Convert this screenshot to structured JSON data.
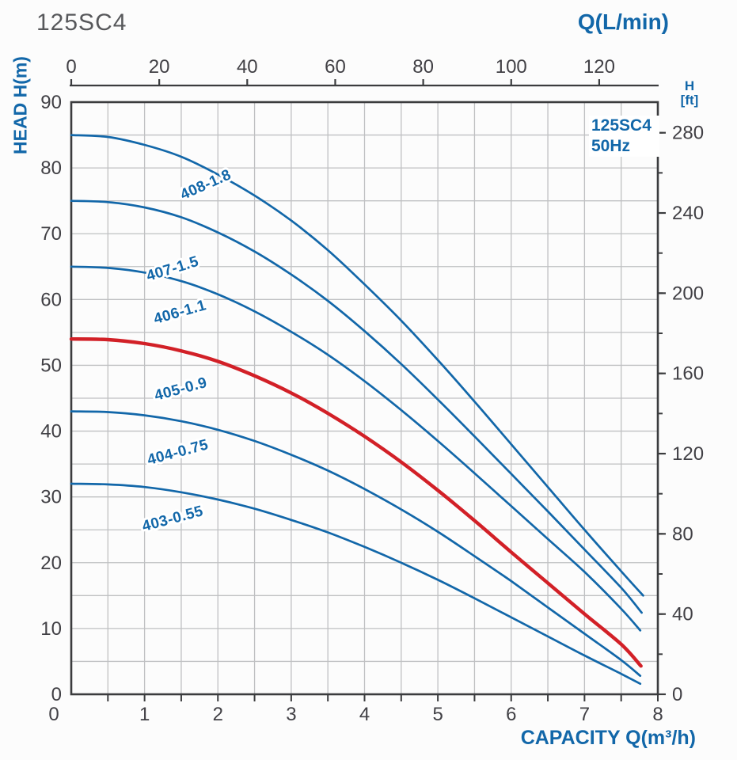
{
  "page": {
    "title": "125SC4"
  },
  "colors": {
    "curve_blue": "#1267a9",
    "curve_red": "#d22027",
    "grid": "#bfc0c2",
    "axis": "#3b3c3e",
    "tick_text": "#414045",
    "title_gray": "#57585b"
  },
  "chart_data": {
    "type": "line",
    "title": "125SC4",
    "legend": {
      "line1": "125SC4",
      "line2": "50Hz"
    },
    "top_axis": {
      "label": "Q(L/min)",
      "ticks": [
        0,
        20,
        40,
        60,
        80,
        100,
        120
      ],
      "range": [
        0,
        133.33
      ],
      "unit": "L/min"
    },
    "bottom_axis": {
      "label": "CAPACITY Q(m³/h)",
      "ticks": [
        0,
        1,
        2,
        3,
        4,
        5,
        6,
        7,
        8
      ],
      "minor_step": 0.5,
      "range": [
        0,
        8
      ],
      "unit": "m³/h"
    },
    "left_axis": {
      "label": "HEAD H(m)",
      "ticks": [
        0,
        10,
        20,
        30,
        40,
        50,
        60,
        70,
        80,
        90
      ],
      "grid_step": 5,
      "range": [
        0,
        90
      ],
      "unit": "m"
    },
    "right_axis": {
      "label_line1": "H",
      "label_line2": "[ft]",
      "major_ticks": [
        0,
        40,
        80,
        120,
        160,
        200,
        240,
        280
      ],
      "minor_step": 20,
      "unit": "ft",
      "ft_per_m": 3.28084
    },
    "grid": true,
    "series": [
      {
        "name": "408-1.8",
        "label": "408-1.8",
        "color_role": "curve_blue",
        "emphasis": false,
        "label_pos": [
          1.86,
          76.8
        ],
        "label_angle": -24,
        "points": [
          [
            0,
            85
          ],
          [
            0.5,
            84.7
          ],
          [
            1,
            83.5
          ],
          [
            1.5,
            81.7
          ],
          [
            2,
            79
          ],
          [
            2.5,
            75.8
          ],
          [
            3,
            72
          ],
          [
            3.5,
            67.5
          ],
          [
            4,
            62.3
          ],
          [
            4.5,
            56.8
          ],
          [
            5,
            50.8
          ],
          [
            5.5,
            44.5
          ],
          [
            6,
            38
          ],
          [
            6.5,
            31.5
          ],
          [
            7,
            25
          ],
          [
            7.5,
            18.7
          ],
          [
            7.8,
            15
          ]
        ]
      },
      {
        "name": "407-1.5",
        "label": "407-1.5",
        "color_role": "curve_blue",
        "emphasis": false,
        "label_pos": [
          1.4,
          64.0
        ],
        "label_angle": -17,
        "points": [
          [
            0,
            75
          ],
          [
            0.5,
            74.8
          ],
          [
            1,
            74
          ],
          [
            1.5,
            72.5
          ],
          [
            2,
            70.2
          ],
          [
            2.5,
            67.3
          ],
          [
            3,
            63.8
          ],
          [
            3.5,
            59.8
          ],
          [
            4,
            55.2
          ],
          [
            4.5,
            50.2
          ],
          [
            5,
            44.8
          ],
          [
            5.5,
            39.2
          ],
          [
            6,
            33.5
          ],
          [
            6.5,
            27.8
          ],
          [
            7,
            22
          ],
          [
            7.5,
            16.2
          ],
          [
            7.78,
            12.4
          ]
        ]
      },
      {
        "name": "406-1.1",
        "label": "406-1.1",
        "color_role": "curve_blue",
        "emphasis": false,
        "label_pos": [
          1.5,
          57.4
        ],
        "label_angle": -16,
        "points": [
          [
            0,
            65
          ],
          [
            0.5,
            64.8
          ],
          [
            1,
            64.1
          ],
          [
            1.5,
            62.8
          ],
          [
            2,
            60.8
          ],
          [
            2.5,
            58.2
          ],
          [
            3,
            55.1
          ],
          [
            3.5,
            51.6
          ],
          [
            4,
            47.6
          ],
          [
            4.5,
            43.2
          ],
          [
            5,
            38.5
          ],
          [
            5.5,
            33.6
          ],
          [
            6,
            28.6
          ],
          [
            6.5,
            23.6
          ],
          [
            7,
            18.6
          ],
          [
            7.5,
            13
          ],
          [
            7.76,
            9.7
          ]
        ]
      },
      {
        "name": "405-0.9",
        "label": "405-0.9",
        "color_role": "curve_red",
        "emphasis": true,
        "label_pos": [
          1.51,
          45.7
        ],
        "label_angle": -15,
        "points": [
          [
            0,
            54
          ],
          [
            0.5,
            53.9
          ],
          [
            1,
            53.3
          ],
          [
            1.5,
            52.2
          ],
          [
            2,
            50.6
          ],
          [
            2.5,
            48.4
          ],
          [
            3,
            45.8
          ],
          [
            3.5,
            42.7
          ],
          [
            4,
            39.2
          ],
          [
            4.5,
            35.3
          ],
          [
            5,
            31
          ],
          [
            5.5,
            26.4
          ],
          [
            6,
            21.6
          ],
          [
            6.5,
            16.9
          ],
          [
            7,
            12.2
          ],
          [
            7.5,
            7.6
          ],
          [
            7.77,
            4.3
          ]
        ]
      },
      {
        "name": "404-0.75",
        "label": "404-0.75",
        "color_role": "curve_blue",
        "emphasis": false,
        "label_pos": [
          1.47,
          36.1
        ],
        "label_angle": -15,
        "points": [
          [
            0,
            43
          ],
          [
            0.5,
            42.9
          ],
          [
            1,
            42.4
          ],
          [
            1.5,
            41.5
          ],
          [
            2,
            40.2
          ],
          [
            2.5,
            38.5
          ],
          [
            3,
            36.4
          ],
          [
            3.5,
            34
          ],
          [
            4,
            31.2
          ],
          [
            4.5,
            28.1
          ],
          [
            5,
            24.7
          ],
          [
            5.5,
            21
          ],
          [
            6,
            17.2
          ],
          [
            6.5,
            13.2
          ],
          [
            7,
            9.2
          ],
          [
            7.5,
            5.2
          ],
          [
            7.76,
            2.8
          ]
        ]
      },
      {
        "name": "403-0.55",
        "label": "403-0.55",
        "color_role": "curve_blue",
        "emphasis": false,
        "label_pos": [
          1.4,
          26.0
        ],
        "label_angle": -15,
        "points": [
          [
            0,
            32
          ],
          [
            0.5,
            31.9
          ],
          [
            1,
            31.5
          ],
          [
            1.5,
            30.7
          ],
          [
            2,
            29.6
          ],
          [
            2.5,
            28.2
          ],
          [
            3,
            26.5
          ],
          [
            3.5,
            24.6
          ],
          [
            4,
            22.4
          ],
          [
            4.5,
            20
          ],
          [
            5,
            17.4
          ],
          [
            5.5,
            14.6
          ],
          [
            6,
            11.7
          ],
          [
            6.5,
            8.8
          ],
          [
            7,
            5.9
          ],
          [
            7.5,
            3.1
          ],
          [
            7.76,
            1.6
          ]
        ]
      }
    ]
  }
}
